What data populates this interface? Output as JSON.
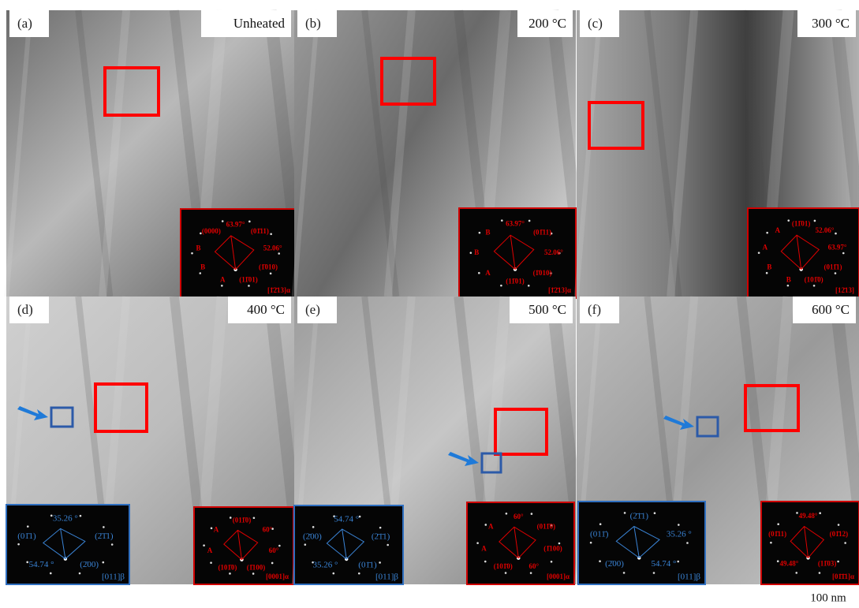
{
  "panels": [
    {
      "label": "(a)",
      "condition": "Unheated",
      "insets": [
        {
          "kind": "red",
          "labels": [
            "63.97°",
            "(01̄11)",
            "52.06°",
            "(1̄010)",
            "(11̄01)",
            "A",
            "B",
            "B",
            "(0000)"
          ],
          "zone": "[1̄2̄13]α"
        }
      ]
    },
    {
      "label": "(b)",
      "condition": "200 °C",
      "insets": [
        {
          "kind": "red",
          "labels": [
            "63.97°",
            "(01̄11)",
            "52.06°",
            "(1̄010)",
            "(11̄01)",
            "A",
            "B",
            "B"
          ],
          "zone": "[1̄2̄13]α"
        }
      ]
    },
    {
      "label": "(c)",
      "condition": "300 °C",
      "insets": [
        {
          "kind": "red",
          "labels": [
            "(11̄01)",
            "52.06°",
            "63.97°",
            "(011̄1)",
            "(101̄0)",
            "B",
            "B",
            "A",
            "A"
          ],
          "zone": "[12̄13]"
        }
      ]
    },
    {
      "label": "(d)",
      "condition": "400 °C",
      "insets": [
        {
          "kind": "blue",
          "labels": [
            "35.26 °",
            "(2̄1̄1)",
            "(2̄00)",
            "54.74 °",
            "(01̄1)"
          ],
          "zone": "[011]β"
        },
        {
          "kind": "red",
          "labels": [
            "(011̄0)",
            "60°",
            "60°",
            "(1̄100)",
            "(101̄0)",
            "A",
            "A"
          ],
          "zone": "[0001]α"
        }
      ]
    },
    {
      "label": "(e)",
      "condition": "500 °C",
      "insets": [
        {
          "kind": "blue",
          "labels": [
            "54.74 °",
            "(2̄1̄1)",
            "(01̄1)",
            "35.26 °",
            "(2̄00)"
          ],
          "zone": "[011]β"
        },
        {
          "kind": "red",
          "labels": [
            "60°",
            "(011̄0)",
            "(1̄100)",
            "60°",
            "(101̄0)",
            "A",
            "A"
          ],
          "zone": "[0001]α"
        }
      ]
    },
    {
      "label": "(f)",
      "condition": "600 °C",
      "insets": [
        {
          "kind": "blue",
          "labels": [
            "(2̄1̄1)",
            "35.26 °",
            "54.74 °",
            "(2̄00)",
            "(011̄)"
          ],
          "zone": "[011]β"
        },
        {
          "kind": "red",
          "labels": [
            "49.48°",
            "(01̄12)",
            "(11̄03)",
            "49.48°",
            "(01̄11)"
          ],
          "zone": "[01̄1̄1]α"
        }
      ]
    }
  ],
  "scale_bar": "100 nm"
}
